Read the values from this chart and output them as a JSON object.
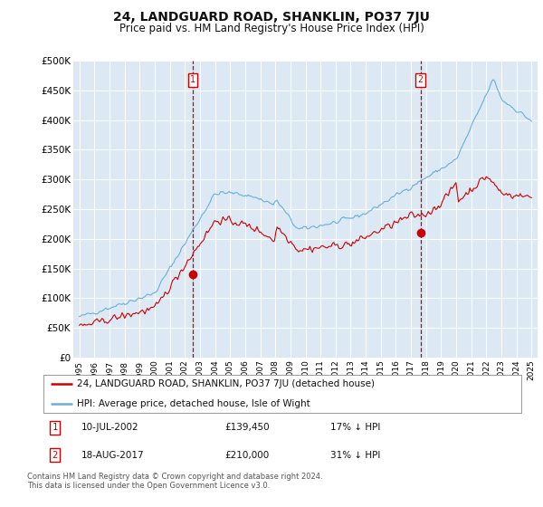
{
  "title": "24, LANDGUARD ROAD, SHANKLIN, PO37 7JU",
  "subtitle": "Price paid vs. HM Land Registry's House Price Index (HPI)",
  "bg_color": "#dce9f5",
  "grid_color": "#ffffff",
  "hpi_color": "#6aaed6",
  "price_color": "#cc0000",
  "dashed_color": "#cc0000",
  "ylim": [
    0,
    500000
  ],
  "yticks": [
    0,
    50000,
    100000,
    150000,
    200000,
    250000,
    300000,
    350000,
    400000,
    450000,
    500000
  ],
  "ytick_labels": [
    "£0",
    "£50K",
    "£100K",
    "£150K",
    "£200K",
    "£250K",
    "£300K",
    "£350K",
    "£400K",
    "£450K",
    "£500K"
  ],
  "transaction1_x": 2002.53,
  "transaction1_y": 139450,
  "transaction2_x": 2017.63,
  "transaction2_y": 210000,
  "legend_entry1": "24, LANDGUARD ROAD, SHANKLIN, PO37 7JU (detached house)",
  "legend_entry2": "HPI: Average price, detached house, Isle of Wight",
  "table_entries": [
    {
      "num": "1",
      "date": "10-JUL-2002",
      "price": "£139,450",
      "hpi": "17% ↓ HPI"
    },
    {
      "num": "2",
      "date": "18-AUG-2017",
      "price": "£210,000",
      "hpi": "31% ↓ HPI"
    }
  ],
  "footnote": "Contains HM Land Registry data © Crown copyright and database right 2024.\nThis data is licensed under the Open Government Licence v3.0.",
  "xtick_years": [
    1995,
    1996,
    1997,
    1998,
    1999,
    2000,
    2001,
    2002,
    2003,
    2004,
    2005,
    2006,
    2007,
    2008,
    2009,
    2010,
    2011,
    2012,
    2013,
    2014,
    2015,
    2016,
    2017,
    2018,
    2019,
    2020,
    2021,
    2022,
    2023,
    2024,
    2025
  ]
}
